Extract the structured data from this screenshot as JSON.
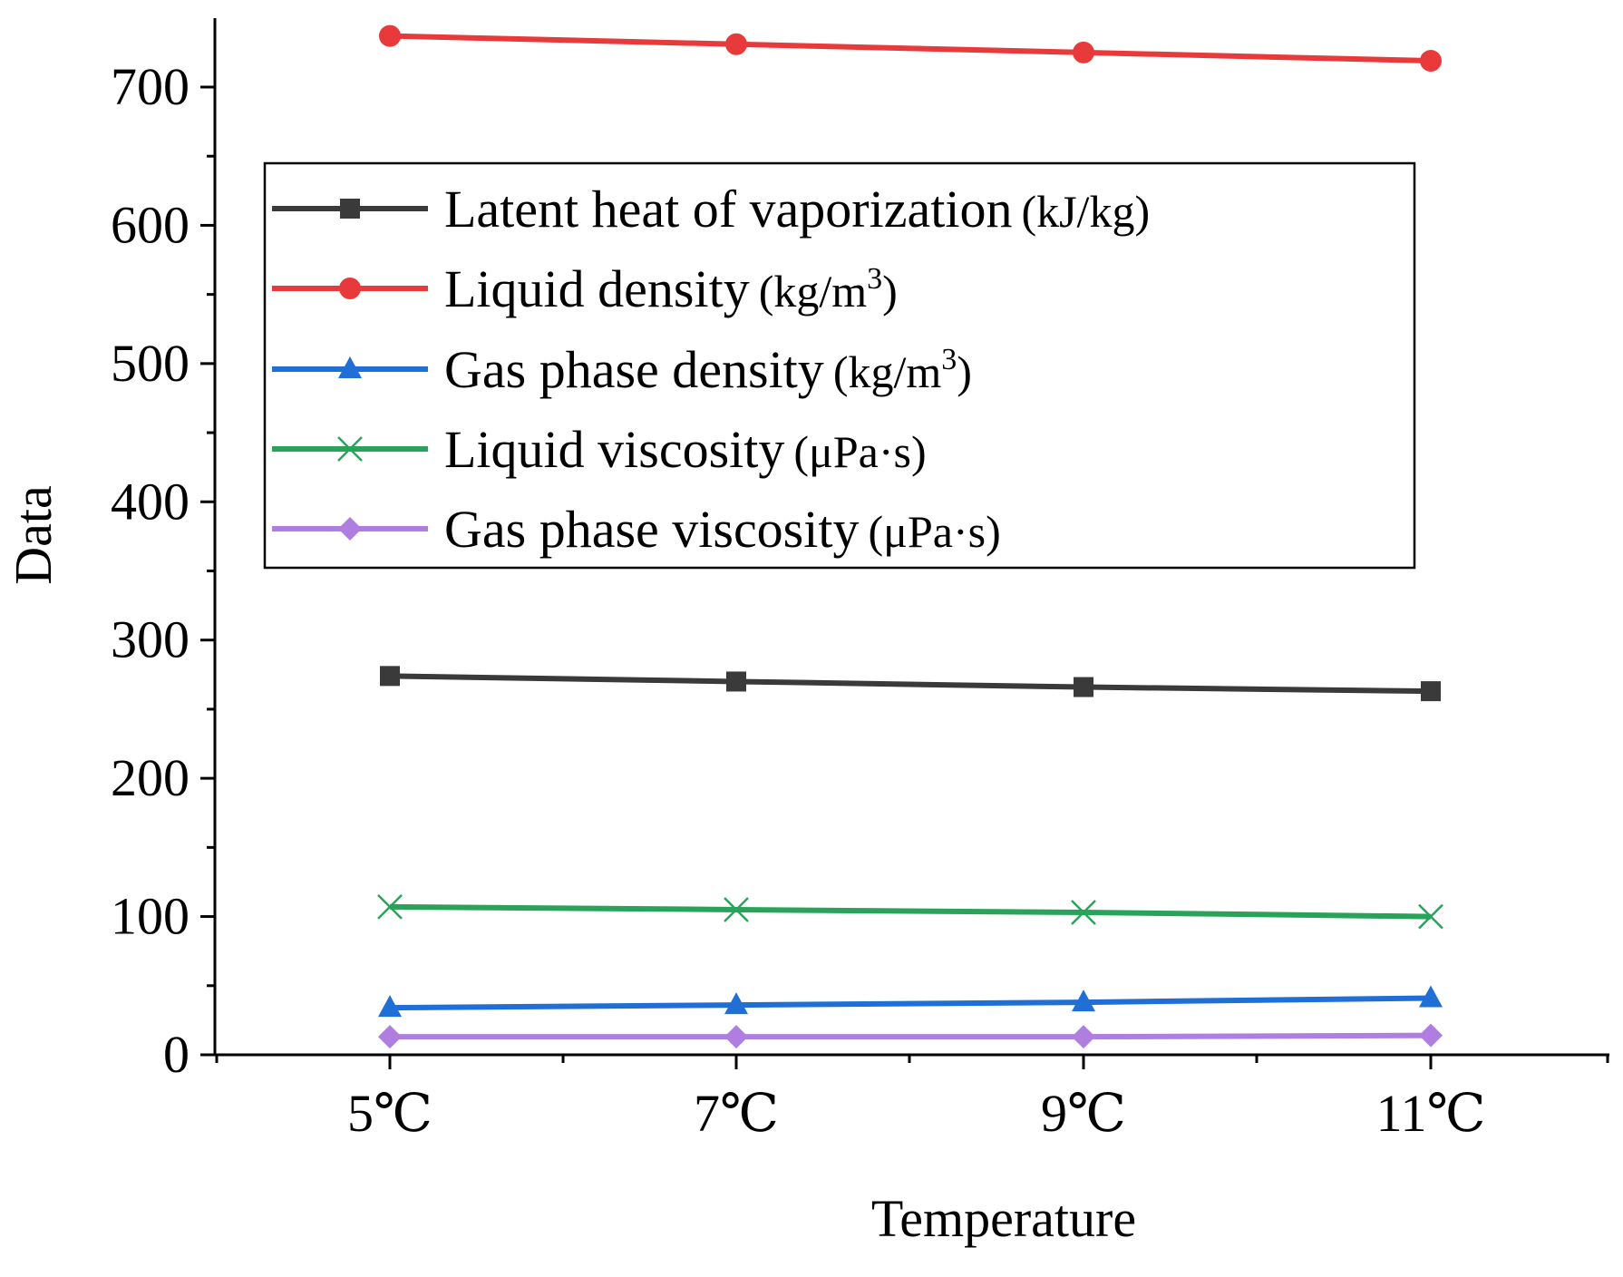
{
  "chart_data": {
    "type": "line",
    "title": "",
    "xlabel": "Temperature",
    "ylabel": "Data",
    "categories": [
      "5℃",
      "7℃",
      "9℃",
      "11℃"
    ],
    "ylim": [
      0,
      750
    ],
    "yticks": [
      0,
      100,
      200,
      300,
      400,
      500,
      600,
      700
    ],
    "grid": false,
    "legend_position": "upper-left-inside",
    "series": [
      {
        "name": "Latent heat of vaporization",
        "unit": "(kJ/kg)",
        "unit_main": "(kJ/kg",
        "unit_sup": "",
        "color": "#3a3a3a",
        "marker": "square",
        "values": [
          274,
          270,
          266,
          263
        ]
      },
      {
        "name": "Liquid density",
        "unit": "(kg/m3)",
        "unit_main": "(kg/m",
        "unit_sup": "3",
        "color": "#e83a3a",
        "marker": "circle",
        "values": [
          737,
          731,
          725,
          719
        ]
      },
      {
        "name": "Gas phase density",
        "unit": "(kg/m3)",
        "unit_main": "(kg/m",
        "unit_sup": "3",
        "color": "#1f6fd6",
        "marker": "triangle",
        "values": [
          34,
          36,
          38,
          41
        ]
      },
      {
        "name": "Liquid viscosity",
        "unit": "(μPa·s)",
        "unit_main": "(μPa·s",
        "unit_sup": "",
        "color": "#2aa35a",
        "marker": "x",
        "values": [
          107,
          105,
          103,
          100
        ]
      },
      {
        "name": "Gas phase viscosity",
        "unit": "(μPa·s)",
        "unit_main": "(μPa·s",
        "unit_sup": "",
        "color": "#b07de0",
        "marker": "diamond",
        "values": [
          13,
          13,
          13,
          14
        ]
      }
    ]
  }
}
